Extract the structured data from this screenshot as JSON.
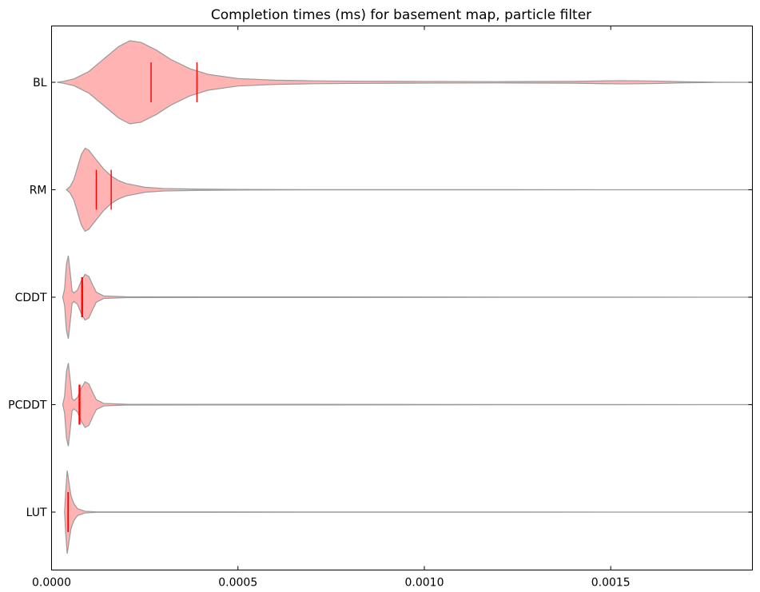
{
  "chart_data": {
    "type": "violin",
    "title": "Completion times (ms) for basement map, particle filter",
    "xlabel": "",
    "ylabel": "",
    "xlim": [
      0,
      0.00188
    ],
    "x_ticks": [
      {
        "value": 0.0,
        "label": "0.0000"
      },
      {
        "value": 0.0005,
        "label": "0.0005"
      },
      {
        "value": 0.001,
        "label": "0.0010"
      },
      {
        "value": 0.0015,
        "label": "0.0015"
      }
    ],
    "grid": false,
    "colors": {
      "fill": "#ffb3b3",
      "edge": "#999999",
      "median": "#ff0000"
    },
    "series": [
      {
        "name": "BL",
        "mean": 0.00039,
        "median": 0.000267,
        "density": [
          [
            1.5e-05,
            0.0
          ],
          [
            3e-05,
            0.02
          ],
          [
            6e-05,
            0.08
          ],
          [
            0.0001,
            0.26
          ],
          [
            0.00014,
            0.56
          ],
          [
            0.00018,
            0.86
          ],
          [
            0.00021,
            1.0
          ],
          [
            0.00024,
            0.96
          ],
          [
            0.00028,
            0.78
          ],
          [
            0.00032,
            0.55
          ],
          [
            0.00037,
            0.33
          ],
          [
            0.00042,
            0.19
          ],
          [
            0.0005,
            0.09
          ],
          [
            0.0006,
            0.05
          ],
          [
            0.0007,
            0.035
          ],
          [
            0.0008,
            0.028
          ],
          [
            0.001,
            0.02
          ],
          [
            0.0012,
            0.016
          ],
          [
            0.0014,
            0.022
          ],
          [
            0.00153,
            0.04
          ],
          [
            0.00162,
            0.03
          ],
          [
            0.0017,
            0.012
          ],
          [
            0.00178,
            0.003
          ],
          [
            0.00188,
            0.0
          ]
        ]
      },
      {
        "name": "RM",
        "mean": 0.00016,
        "median": 0.00012,
        "density": [
          [
            4e-05,
            0.0
          ],
          [
            5e-05,
            0.08
          ],
          [
            6e-05,
            0.25
          ],
          [
            7e-05,
            0.55
          ],
          [
            8e-05,
            0.85
          ],
          [
            9e-05,
            1.0
          ],
          [
            0.0001,
            0.95
          ],
          [
            0.00012,
            0.72
          ],
          [
            0.00014,
            0.5
          ],
          [
            0.00016,
            0.33
          ],
          [
            0.00018,
            0.22
          ],
          [
            0.0002,
            0.15
          ],
          [
            0.00025,
            0.06
          ],
          [
            0.0003,
            0.03
          ],
          [
            0.0004,
            0.015
          ],
          [
            0.0005,
            0.008
          ],
          [
            0.0007,
            0.003
          ],
          [
            0.00188,
            0.0
          ]
        ]
      },
      {
        "name": "CDDT",
        "mean": 8.3e-05,
        "median": 8.1e-05,
        "density": [
          [
            3e-05,
            0.0
          ],
          [
            3.5e-05,
            0.2
          ],
          [
            4e-05,
            0.8
          ],
          [
            4.5e-05,
            1.0
          ],
          [
            5e-05,
            0.6
          ],
          [
            5.5e-05,
            0.15
          ],
          [
            6e-05,
            0.1
          ],
          [
            7e-05,
            0.18
          ],
          [
            8e-05,
            0.4
          ],
          [
            9e-05,
            0.55
          ],
          [
            0.0001,
            0.5
          ],
          [
            0.00011,
            0.3
          ],
          [
            0.00012,
            0.12
          ],
          [
            0.00014,
            0.03
          ],
          [
            0.0002,
            0.01
          ],
          [
            0.00188,
            0.0
          ]
        ]
      },
      {
        "name": "PCDDT",
        "mean": 7.6e-05,
        "median": 7.4e-05,
        "density": [
          [
            3e-05,
            0.0
          ],
          [
            3.5e-05,
            0.2
          ],
          [
            4e-05,
            0.8
          ],
          [
            4.5e-05,
            1.0
          ],
          [
            5e-05,
            0.6
          ],
          [
            5.5e-05,
            0.15
          ],
          [
            6e-05,
            0.1
          ],
          [
            7e-05,
            0.18
          ],
          [
            8e-05,
            0.4
          ],
          [
            9e-05,
            0.55
          ],
          [
            0.0001,
            0.5
          ],
          [
            0.00011,
            0.3
          ],
          [
            0.00012,
            0.12
          ],
          [
            0.00014,
            0.03
          ],
          [
            0.0002,
            0.01
          ],
          [
            0.00188,
            0.0
          ]
        ]
      },
      {
        "name": "LUT",
        "mean": 4.5e-05,
        "median": 4.4e-05,
        "density": [
          [
            3.5e-05,
            0.0
          ],
          [
            3.8e-05,
            0.5
          ],
          [
            4.2e-05,
            1.0
          ],
          [
            4.7e-05,
            0.7
          ],
          [
            5.2e-05,
            0.4
          ],
          [
            6e-05,
            0.2
          ],
          [
            7e-05,
            0.08
          ],
          [
            9e-05,
            0.02
          ],
          [
            0.00012,
            0.006
          ],
          [
            0.00188,
            0.0
          ]
        ]
      }
    ]
  }
}
